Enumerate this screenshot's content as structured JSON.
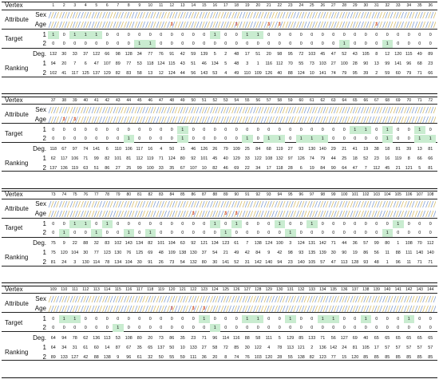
{
  "labels": {
    "vertex": "Vertex",
    "attribute": "Attribute",
    "sex": "Sex",
    "age": "Age",
    "target": "Target",
    "deg": "Deg.",
    "ranking": "Ranking",
    "row1": "1",
    "row2": "2"
  },
  "colors": {
    "highlight": "#c9ecd0",
    "age_mark": "#d43a2c"
  },
  "blocks": [
    {
      "vertices": [
        "1",
        "2",
        "3",
        "4",
        "5",
        "6",
        "7",
        "8",
        "9",
        "10",
        "11",
        "12",
        "13",
        "14",
        "15",
        "16",
        "17",
        "18",
        "19",
        "20",
        "21",
        "22",
        "23",
        "24",
        "25",
        "26",
        "27",
        "28",
        "29",
        "30",
        "31",
        "32",
        "33",
        "34",
        "35",
        "36"
      ],
      "age_marks": [
        "",
        "",
        "",
        "",
        "",
        "",
        "",
        "",
        "",
        "",
        "",
        "3",
        "",
        "",
        "",
        "",
        "",
        "3",
        "",
        "",
        "3",
        "3",
        "",
        "",
        "",
        "",
        "",
        "",
        "",
        "",
        "3",
        "",
        "",
        "",
        "",
        ""
      ],
      "target1": [
        "1",
        "0",
        "1",
        "1",
        "1",
        "0",
        "0",
        "0",
        "0",
        "0",
        "0",
        "0",
        "0",
        "0",
        "0",
        "1",
        "0",
        "0",
        "1",
        "1",
        "0",
        "0",
        "0",
        "0",
        "0",
        "0",
        "0",
        "0",
        "0",
        "0",
        "0",
        "0",
        "0",
        "0",
        "0",
        "0"
      ],
      "target2": [
        "0",
        "0",
        "0",
        "0",
        "0",
        "0",
        "0",
        "0",
        "1",
        "1",
        "0",
        "0",
        "0",
        "0",
        "0",
        "0",
        "0",
        "0",
        "0",
        "0",
        "0",
        "0",
        "0",
        "0",
        "0",
        "0",
        "0",
        "1",
        "0",
        "0",
        "0",
        "1",
        "0",
        "0",
        "0",
        "0"
      ],
      "deg": [
        "132",
        "30",
        "33",
        "37",
        "122",
        "66",
        "98",
        "128",
        "34",
        "77",
        "76",
        "91",
        "42",
        "59",
        "139",
        "5",
        "2",
        "48",
        "17",
        "51",
        "20",
        "98",
        "95",
        "72",
        "103",
        "45",
        "47",
        "52",
        "43",
        "105",
        "8",
        "12",
        "120",
        "115",
        "49",
        "89"
      ],
      "rank1": [
        "94",
        "20",
        "7",
        "6",
        "47",
        "107",
        "89",
        "77",
        "53",
        "118",
        "124",
        "115",
        "43",
        "51",
        "46",
        "134",
        "5",
        "48",
        "3",
        "1",
        "116",
        "112",
        "70",
        "55",
        "73",
        "103",
        "27",
        "100",
        "28",
        "90",
        "13",
        "99",
        "141",
        "96",
        "68",
        "23"
      ],
      "rank2": [
        "102",
        "41",
        "117",
        "125",
        "137",
        "129",
        "82",
        "83",
        "58",
        "13",
        "12",
        "124",
        "44",
        "56",
        "143",
        "53",
        "4",
        "49",
        "110",
        "109",
        "126",
        "40",
        "88",
        "124",
        "10",
        "141",
        "74",
        "79",
        "95",
        "39",
        "2",
        "59",
        "60",
        "79",
        "71",
        "66"
      ]
    },
    {
      "vertices": [
        "37",
        "38",
        "39",
        "40",
        "41",
        "42",
        "43",
        "44",
        "45",
        "46",
        "47",
        "48",
        "49",
        "50",
        "51",
        "52",
        "53",
        "54",
        "55",
        "56",
        "57",
        "58",
        "59",
        "60",
        "61",
        "62",
        "63",
        "64",
        "65",
        "66",
        "67",
        "68",
        "69",
        "70",
        "71",
        "72"
      ],
      "age_marks": [
        "",
        "3",
        "3",
        "",
        "",
        "",
        "",
        "",
        "",
        "",
        "",
        "",
        "",
        "",
        "",
        "",
        "",
        "",
        "",
        "",
        "",
        "",
        "",
        "",
        "",
        "",
        "",
        "",
        "",
        "",
        "",
        "",
        "",
        "",
        "",
        ""
      ],
      "target1": [
        "0",
        "0",
        "0",
        "0",
        "0",
        "0",
        "0",
        "0",
        "0",
        "0",
        "0",
        "0",
        "1",
        "0",
        "0",
        "0",
        "0",
        "0",
        "0",
        "0",
        "0",
        "0",
        "0",
        "0",
        "0",
        "0",
        "0",
        "0",
        "1",
        "1",
        "0",
        "1",
        "0",
        "0",
        "1",
        "0"
      ],
      "target2": [
        "0",
        "0",
        "0",
        "0",
        "0",
        "0",
        "0",
        "1",
        "0",
        "0",
        "0",
        "0",
        "1",
        "0",
        "0",
        "0",
        "0",
        "0",
        "1",
        "0",
        "1",
        "1",
        "0",
        "1",
        "1",
        "1",
        "0",
        "0",
        "0",
        "0",
        "0",
        "1",
        "0",
        "0",
        "1",
        "1"
      ],
      "deg": [
        "118",
        "67",
        "97",
        "74",
        "141",
        "6",
        "110",
        "106",
        "117",
        "16",
        "4",
        "50",
        "15",
        "46",
        "126",
        "26",
        "79",
        "109",
        "25",
        "84",
        "68",
        "119",
        "27",
        "93",
        "130",
        "140",
        "29",
        "21",
        "41",
        "19",
        "38",
        "18",
        "81",
        "39",
        "13",
        "81"
      ],
      "rank1": [
        "62",
        "117",
        "106",
        "71",
        "99",
        "82",
        "101",
        "81",
        "112",
        "119",
        "71",
        "124",
        "80",
        "92",
        "101",
        "45",
        "40",
        "129",
        "33",
        "122",
        "108",
        "132",
        "97",
        "126",
        "74",
        "79",
        "44",
        "25",
        "18",
        "52",
        "23",
        "16",
        "119",
        "8",
        "66",
        "66"
      ],
      "rank2": [
        "137",
        "136",
        "119",
        "63",
        "51",
        "86",
        "27",
        "25",
        "99",
        "100",
        "33",
        "35",
        "67",
        "107",
        "10",
        "82",
        "46",
        "69",
        "22",
        "34",
        "17",
        "118",
        "28",
        "6",
        "19",
        "84",
        "90",
        "64",
        "47",
        "7",
        "112",
        "45",
        "21",
        "121",
        "5",
        "81"
      ]
    },
    {
      "vertices": [
        "73",
        "74",
        "75",
        "76",
        "77",
        "78",
        "79",
        "80",
        "81",
        "82",
        "83",
        "84",
        "85",
        "86",
        "87",
        "88",
        "89",
        "90",
        "91",
        "92",
        "93",
        "94",
        "95",
        "96",
        "97",
        "98",
        "99",
        "100",
        "101",
        "102",
        "103",
        "104",
        "105",
        "106",
        "107",
        "108"
      ],
      "age_marks": [
        "",
        "",
        "",
        "",
        "",
        "",
        "",
        "",
        "",
        "",
        "",
        "",
        "",
        "3",
        "",
        "",
        "3",
        "3",
        "",
        "",
        "",
        "",
        "",
        "",
        "",
        "",
        "",
        "",
        "",
        "",
        "",
        "",
        "",
        "",
        "",
        ""
      ],
      "target1": [
        "0",
        "0",
        "1",
        "1",
        "0",
        "1",
        "0",
        "0",
        "0",
        "0",
        "0",
        "0",
        "0",
        "0",
        "0",
        "1",
        "0",
        "1",
        "0",
        "0",
        "0",
        "1",
        "0",
        "0",
        "1",
        "0",
        "0",
        "0",
        "0",
        "0",
        "0",
        "0",
        "1",
        "0",
        "0",
        "0"
      ],
      "target2": [
        "0",
        "1",
        "0",
        "0",
        "1",
        "0",
        "0",
        "1",
        "0",
        "1",
        "0",
        "0",
        "0",
        "0",
        "0",
        "0",
        "1",
        "0",
        "0",
        "0",
        "0",
        "0",
        "1",
        "0",
        "0",
        "0",
        "0",
        "0",
        "0",
        "0",
        "0",
        "1",
        "0",
        "0",
        "0",
        "0"
      ],
      "deg": [
        "75",
        "9",
        "22",
        "88",
        "32",
        "83",
        "102",
        "143",
        "134",
        "82",
        "101",
        "104",
        "63",
        "92",
        "121",
        "134",
        "123",
        "61",
        "7",
        "138",
        "124",
        "100",
        "3",
        "124",
        "131",
        "142",
        "71",
        "44",
        "36",
        "57",
        "99",
        "80",
        "1",
        "108",
        "70",
        "112"
      ],
      "rank1": [
        "75",
        "120",
        "104",
        "30",
        "77",
        "123",
        "130",
        "76",
        "125",
        "69",
        "48",
        "109",
        "138",
        "130",
        "37",
        "54",
        "21",
        "49",
        "42",
        "84",
        "9",
        "42",
        "98",
        "93",
        "135",
        "139",
        "30",
        "90",
        "19",
        "86",
        "56",
        "11",
        "88",
        "111",
        "140",
        "140"
      ],
      "rank2": [
        "81",
        "24",
        "3",
        "130",
        "114",
        "78",
        "134",
        "104",
        "30",
        "91",
        "26",
        "73",
        "54",
        "132",
        "80",
        "30",
        "141",
        "52",
        "31",
        "142",
        "140",
        "94",
        "23",
        "140",
        "105",
        "57",
        "47",
        "113",
        "128",
        "93",
        "48",
        "1",
        "96",
        "11",
        "71",
        "71"
      ]
    },
    {
      "vertices": [
        "109",
        "110",
        "111",
        "112",
        "113",
        "114",
        "115",
        "116",
        "117",
        "118",
        "119",
        "120",
        "121",
        "122",
        "123",
        "124",
        "125",
        "126",
        "127",
        "128",
        "129",
        "130",
        "131",
        "132",
        "133",
        "134",
        "135",
        "136",
        "137",
        "138",
        "139",
        "140",
        "141",
        "142",
        "143",
        "144"
      ],
      "age_marks": [
        "",
        "",
        "",
        "",
        "",
        "",
        "",
        "",
        "",
        "",
        "",
        "3",
        "",
        "3",
        "3",
        "",
        "",
        "",
        "",
        "",
        "",
        "",
        "",
        "",
        "",
        "",
        "",
        "",
        "",
        "",
        "",
        "",
        "",
        "",
        "",
        ""
      ],
      "target1": [
        "0",
        "1",
        "1",
        "0",
        "0",
        "0",
        "0",
        "0",
        "0",
        "0",
        "0",
        "0",
        "0",
        "0",
        "1",
        "0",
        "0",
        "0",
        "1",
        "1",
        "0",
        "0",
        "1",
        "0",
        "0",
        "1",
        "1",
        "0",
        "0",
        "1",
        "0",
        "0",
        "0",
        "1",
        "0",
        "0"
      ],
      "target2": [
        "0",
        "0",
        "0",
        "0",
        "0",
        "0",
        "1",
        "0",
        "0",
        "0",
        "0",
        "0",
        "0",
        "0",
        "0",
        "1",
        "0",
        "0",
        "0",
        "0",
        "0",
        "0",
        "0",
        "0",
        "0",
        "0",
        "0",
        "0",
        "0",
        "0",
        "0",
        "0",
        "0",
        "0",
        "0",
        "0"
      ],
      "deg": [
        "64",
        "94",
        "78",
        "62",
        "136",
        "113",
        "53",
        "108",
        "80",
        "20",
        "73",
        "86",
        "35",
        "23",
        "71",
        "96",
        "114",
        "116",
        "88",
        "58",
        "111",
        "5",
        "129",
        "85",
        "133",
        "71",
        "56",
        "127",
        "69",
        "40",
        "65",
        "65",
        "65",
        "65",
        "65",
        "65"
      ],
      "rank1": [
        "64",
        "34",
        "31",
        "61",
        "60",
        "14",
        "87",
        "67",
        "35",
        "65",
        "137",
        "50",
        "10",
        "133",
        "27",
        "58",
        "72",
        "85",
        "30",
        "122",
        "4",
        "78",
        "113",
        "121",
        "2",
        "136",
        "142",
        "24",
        "81",
        "105",
        "17",
        "57",
        "57",
        "57",
        "57",
        "57"
      ],
      "rank2": [
        "89",
        "133",
        "127",
        "42",
        "88",
        "138",
        "9",
        "96",
        "61",
        "32",
        "50",
        "55",
        "59",
        "111",
        "36",
        "20",
        "8",
        "74",
        "76",
        "103",
        "120",
        "28",
        "55",
        "138",
        "82",
        "123",
        "77",
        "15",
        "120",
        "85",
        "85",
        "85",
        "85",
        "85",
        "85",
        "85"
      ]
    }
  ]
}
